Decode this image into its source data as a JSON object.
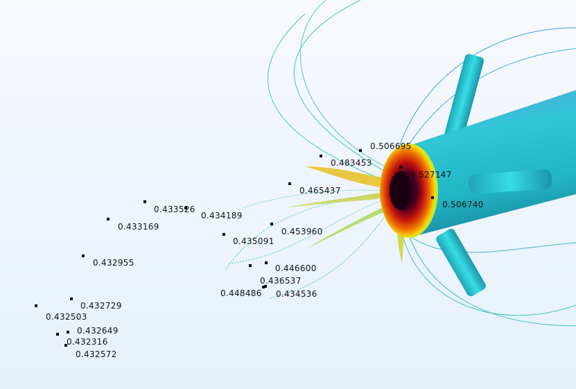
{
  "viewport": {
    "background_top": "#f7f9fd",
    "background_bottom": "#e6f0fb",
    "colormap": "rainbow-heat",
    "point_labels": [
      "0.506695",
      "0.483453",
      "0.527147",
      "0.465437",
      "0.506740",
      "0.433526",
      "0.434189",
      "0.433169",
      "0.453960",
      "0.435091",
      "0.432955",
      "0.446600",
      "0.436537",
      "0.448486",
      "0.434536",
      "0.432729",
      "0.432503",
      "0.432649",
      "0.432316",
      "0.432572"
    ]
  }
}
